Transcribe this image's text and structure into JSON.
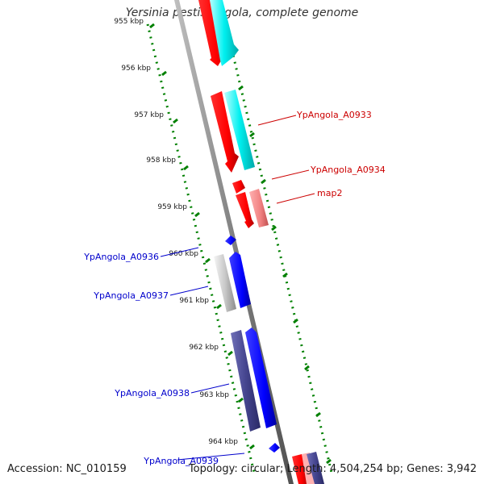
{
  "title": "Yersinia pestis Angola, complete genome",
  "footer": {
    "accession": "Accession: NC_010159",
    "summary": "Topology: circular; Length: 4,504,254 bp; Genes: 3,942"
  },
  "ticks": [
    "955 kbp",
    "956 kbp",
    "957 kbp",
    "958 kbp",
    "959 kbp",
    "960 kbp",
    "961 kbp",
    "962 kbp",
    "963 kbp",
    "964 kbp"
  ],
  "gene_labels": {
    "right": [
      "YpAngola_A0933",
      "YpAngola_A0934",
      "map2"
    ],
    "left": [
      "YpAngola_A0936",
      "YpAngola_A0937",
      "YpAngola_A0938",
      "YpAngola_A0939"
    ]
  },
  "colors": {
    "forward_strand": "#ff0000",
    "forward_shadow": "#00e5e5",
    "reverse_strand": "#0000ff",
    "reverse_shadow": "#3b3b8f",
    "pseudo_pink": "#f08080",
    "gray_gene": "#c8c8c8",
    "tick_green": "#008000",
    "label_red": "#cc0000",
    "label_blue": "#0000cc",
    "backbone": "#808080"
  }
}
